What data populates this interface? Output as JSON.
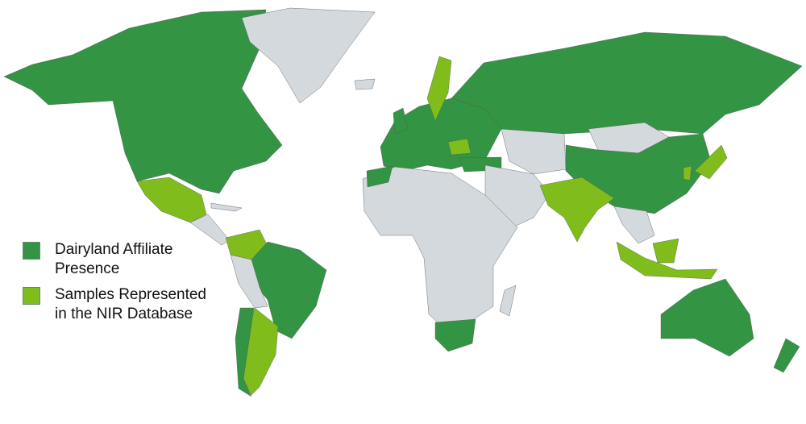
{
  "colors": {
    "affiliate": "#339444",
    "samples": "#80bd1c",
    "other": "#d3d9dc",
    "border": "#555555"
  },
  "legend": [
    {
      "key": "affiliate",
      "label": "Dairyland Affiliate Presence"
    },
    {
      "key": "samples",
      "label": "Samples Represented in the NIR Database"
    }
  ],
  "regions": [
    {
      "name": "canada-usa-alaska",
      "category": "affiliate"
    },
    {
      "name": "greenland",
      "category": "other"
    },
    {
      "name": "iceland",
      "category": "other"
    },
    {
      "name": "mexico",
      "category": "samples"
    },
    {
      "name": "central-america",
      "category": "other"
    },
    {
      "name": "colombia-venezuela",
      "category": "samples"
    },
    {
      "name": "brazil",
      "category": "affiliate"
    },
    {
      "name": "peru-bolivia",
      "category": "other"
    },
    {
      "name": "argentina",
      "category": "samples"
    },
    {
      "name": "chile",
      "category": "affiliate"
    },
    {
      "name": "europe",
      "category": "affiliate"
    },
    {
      "name": "united-kingdom",
      "category": "affiliate"
    },
    {
      "name": "sweden",
      "category": "samples"
    },
    {
      "name": "romania",
      "category": "samples"
    },
    {
      "name": "russia",
      "category": "affiliate"
    },
    {
      "name": "turkey",
      "category": "affiliate"
    },
    {
      "name": "central-asia",
      "category": "other"
    },
    {
      "name": "mongolia",
      "category": "other"
    },
    {
      "name": "china",
      "category": "affiliate"
    },
    {
      "name": "middle-east",
      "category": "other"
    },
    {
      "name": "india-pakistan",
      "category": "samples"
    },
    {
      "name": "southeast-asia",
      "category": "other"
    },
    {
      "name": "indonesia",
      "category": "samples"
    },
    {
      "name": "borneo",
      "category": "samples"
    },
    {
      "name": "japan",
      "category": "samples"
    },
    {
      "name": "africa",
      "category": "other"
    },
    {
      "name": "morocco",
      "category": "affiliate"
    },
    {
      "name": "south-africa",
      "category": "affiliate"
    },
    {
      "name": "madagascar",
      "category": "other"
    },
    {
      "name": "australia",
      "category": "affiliate"
    },
    {
      "name": "new-zealand",
      "category": "affiliate"
    }
  ]
}
